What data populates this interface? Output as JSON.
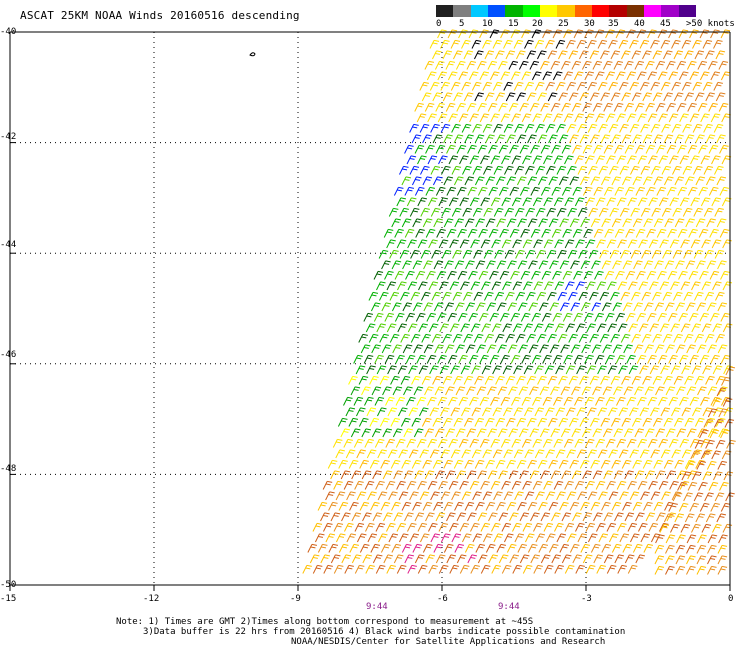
{
  "title": "ASCAT 25KM NOAA Winds 20160516 descending",
  "legend": {
    "labels": [
      "0",
      "5",
      "10",
      "15",
      "20",
      "25",
      "30",
      "35",
      "40",
      "45",
      ">50 knots"
    ],
    "colors": [
      "#202020",
      "#7f7f7f",
      "#00c8ff",
      "#0050ff",
      "#00b400",
      "#00ff00",
      "#ffff00",
      "#ffc800",
      "#ff6400",
      "#ff0000",
      "#b40000",
      "#7a3000",
      "#ff00ff",
      "#a000c8",
      "#50008c"
    ]
  },
  "axes": {
    "lat_labels": [
      "-40",
      "-42",
      "-44",
      "-46",
      "-48",
      "-50"
    ],
    "lon_labels": [
      "-15",
      "-12",
      "-9",
      "-6",
      "-3",
      "0"
    ],
    "lat_range": [
      -50,
      -40
    ],
    "lon_range": [
      -15,
      0
    ]
  },
  "time_labels": [
    "9:44",
    "9:44"
  ],
  "notes": [
    "Note: 1) Times are GMT 2)Times along bottom correspond to measurement at ~45S",
    "3)Data buffer is 22 hrs from 20160516 4) Black wind barbs indicate possible contamination",
    "NOAA/NESDIS/Center for Satellite Applications and Research"
  ]
}
